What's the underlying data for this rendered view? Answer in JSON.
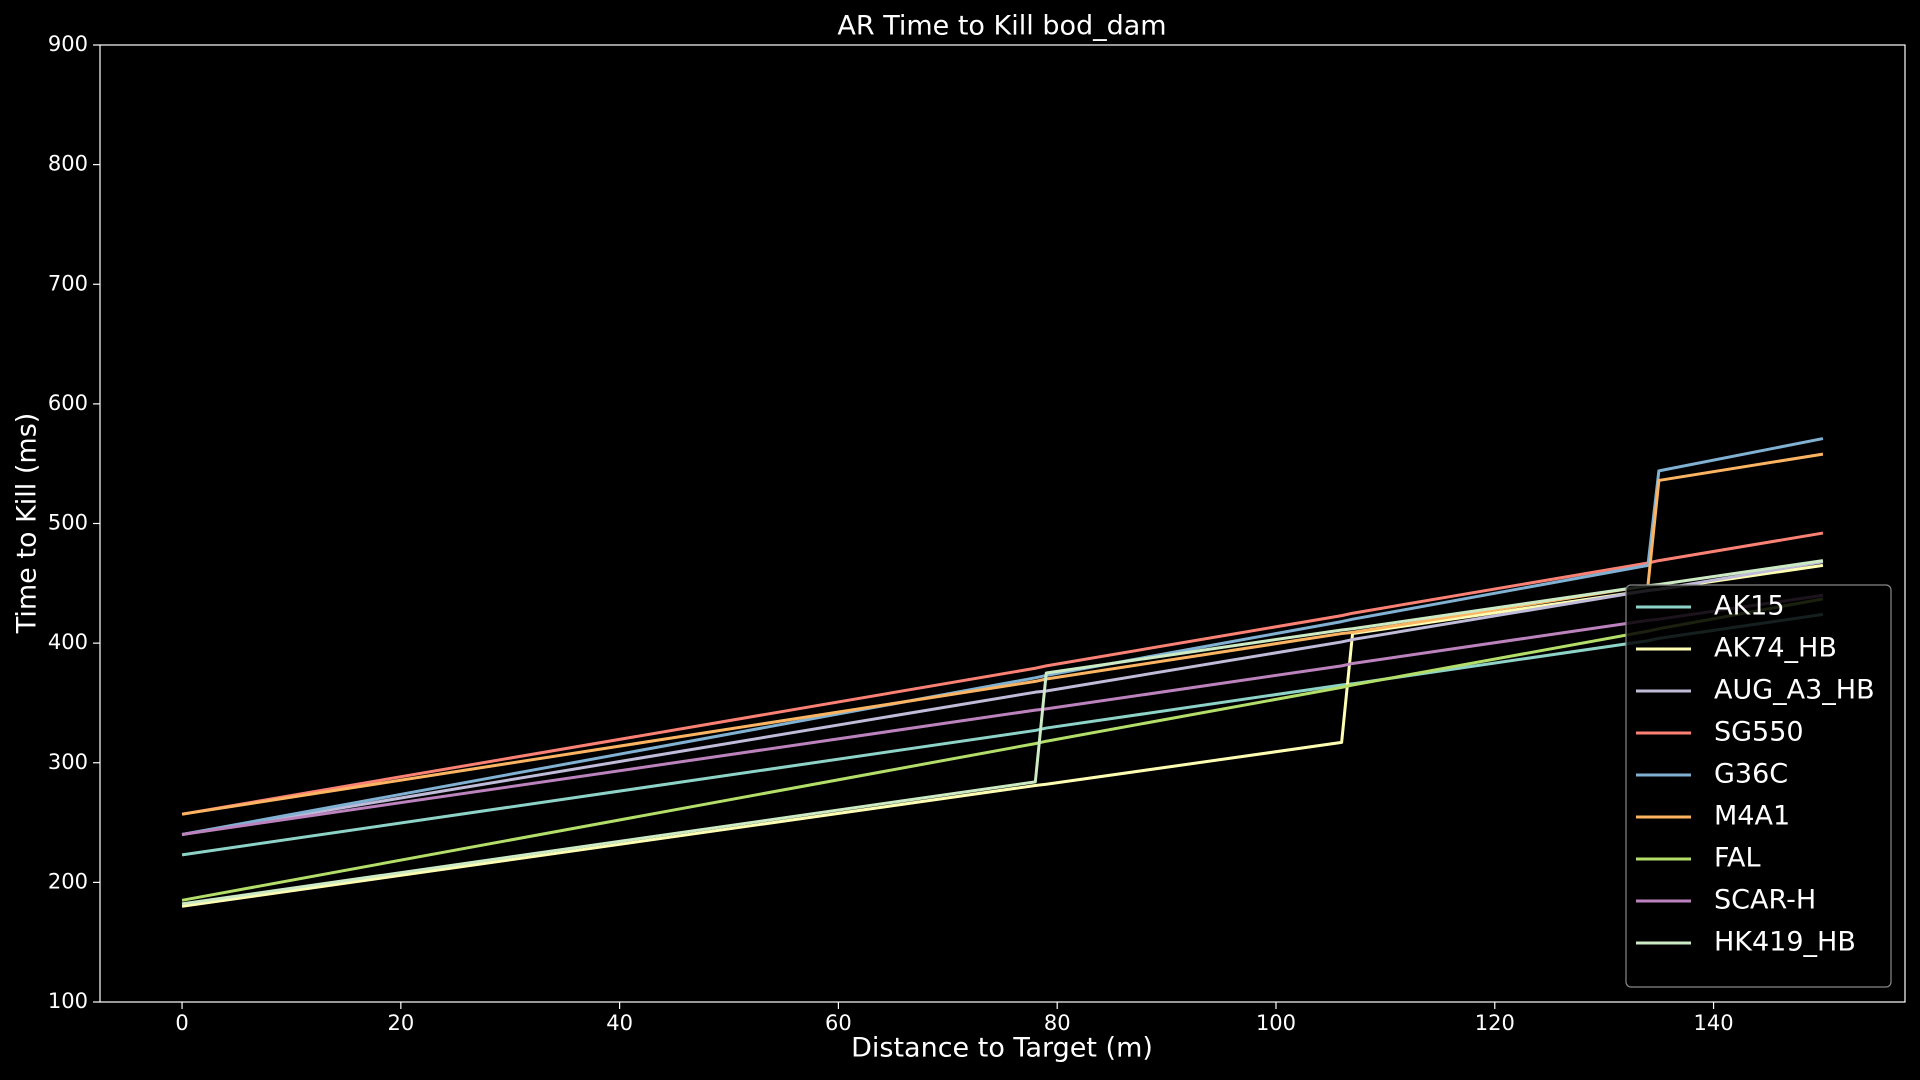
{
  "chart_data": {
    "type": "line",
    "title": "AR Time to Kill bod_dam",
    "xlabel": "Distance to Target (m)",
    "ylabel": "Time to Kill (ms)",
    "x": [
      0,
      78,
      79,
      106,
      107,
      134,
      135,
      150
    ],
    "series": [
      {
        "name": "AK15",
        "color": "#8dd3c7",
        "values": [
          223,
          327,
          329,
          365,
          366,
          402,
          404,
          424
        ]
      },
      {
        "name": "AK74_HB",
        "color": "#feffb3",
        "values": [
          180,
          281,
          282,
          317,
          408,
          444,
          445,
          465
        ]
      },
      {
        "name": "AUG_A3_HB",
        "color": "#bfbbd9",
        "values": [
          240,
          359,
          360,
          401,
          403,
          444,
          445,
          468
        ]
      },
      {
        "name": "SG550",
        "color": "#fa8174",
        "values": [
          257,
          379,
          381,
          423,
          425,
          467,
          469,
          492
        ]
      },
      {
        "name": "G36C",
        "color": "#81b1d2",
        "values": [
          240,
          371,
          373,
          418,
          420,
          465,
          544,
          571
        ]
      },
      {
        "name": "M4A1",
        "color": "#fdb462",
        "values": [
          257,
          368,
          370,
          408,
          409,
          448,
          536,
          558
        ]
      },
      {
        "name": "FAL",
        "color": "#b3de69",
        "values": [
          185,
          316,
          318,
          363,
          365,
          410,
          412,
          437
        ]
      },
      {
        "name": "SCAR-H",
        "color": "#bc82bd",
        "values": [
          240,
          344,
          345,
          381,
          383,
          419,
          420,
          440
        ]
      },
      {
        "name": "HK419_HB",
        "color": "#ccebc4",
        "values": [
          182,
          284,
          375,
          411,
          412,
          448,
          449,
          469
        ]
      }
    ],
    "xlim": [
      -7.5,
      157.5
    ],
    "xticks": [
      0,
      20,
      40,
      60,
      80,
      100,
      120,
      140
    ],
    "ylim": [
      100,
      900
    ],
    "yticks": [
      100,
      200,
      300,
      400,
      500,
      600,
      700,
      800,
      900
    ],
    "grid": false,
    "legend": "lower right"
  }
}
